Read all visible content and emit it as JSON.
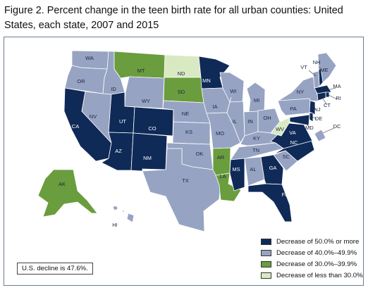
{
  "title": "Figure 2. Percent change in the teen birth rate for all urban counties: United States, each state, 2007 and 2015",
  "colors": {
    "dark_navy": "#0f2a57",
    "slate_blue": "#97a3c2",
    "green": "#6a9d3d",
    "light_green": "#d9e9c2",
    "state_border": "#ffffff",
    "panel_border": "#6d7d92"
  },
  "legend": [
    {
      "label": "Decrease of 50.0% or more",
      "color": "#0f2a57"
    },
    {
      "label": "Decrease of 40.0%–49.9%",
      "color": "#97a3c2"
    },
    {
      "label": "Decrease of 30.0%–39.9%",
      "color": "#6a9d3d"
    },
    {
      "label": "Decrease of less than 30.0%",
      "color": "#d9e9c2"
    }
  ],
  "note": "U.S. decline is 47.6%.",
  "states": [
    {
      "abbr": "WA",
      "category": "40.0–49.9"
    },
    {
      "abbr": "OR",
      "category": "40.0–49.9"
    },
    {
      "abbr": "CA",
      "category": "50.0+"
    },
    {
      "abbr": "NV",
      "category": "40.0–49.9"
    },
    {
      "abbr": "ID",
      "category": "40.0–49.9"
    },
    {
      "abbr": "MT",
      "category": "30.0–39.9"
    },
    {
      "abbr": "WY",
      "category": "40.0–49.9"
    },
    {
      "abbr": "UT",
      "category": "50.0+"
    },
    {
      "abbr": "CO",
      "category": "50.0+"
    },
    {
      "abbr": "AZ",
      "category": "50.0+"
    },
    {
      "abbr": "NM",
      "category": "50.0+"
    },
    {
      "abbr": "ND",
      "category": "<30.0"
    },
    {
      "abbr": "SD",
      "category": "30.0–39.9"
    },
    {
      "abbr": "NE",
      "category": "40.0–49.9"
    },
    {
      "abbr": "KS",
      "category": "40.0–49.9"
    },
    {
      "abbr": "OK",
      "category": "40.0–49.9"
    },
    {
      "abbr": "TX",
      "category": "40.0–49.9"
    },
    {
      "abbr": "MN",
      "category": "50.0+"
    },
    {
      "abbr": "IA",
      "category": "40.0–49.9"
    },
    {
      "abbr": "MO",
      "category": "40.0–49.9"
    },
    {
      "abbr": "AR",
      "category": "30.0–39.9"
    },
    {
      "abbr": "LA",
      "category": "30.0–39.9"
    },
    {
      "abbr": "WI",
      "category": "40.0–49.9"
    },
    {
      "abbr": "IL",
      "category": "40.0–49.9"
    },
    {
      "abbr": "MI",
      "category": "40.0–49.9"
    },
    {
      "abbr": "IN",
      "category": "40.0–49.9"
    },
    {
      "abbr": "OH",
      "category": "40.0–49.9"
    },
    {
      "abbr": "KY",
      "category": "40.0–49.9"
    },
    {
      "abbr": "TN",
      "category": "40.0–49.9"
    },
    {
      "abbr": "MS",
      "category": "50.0+"
    },
    {
      "abbr": "AL",
      "category": "40.0–49.9"
    },
    {
      "abbr": "GA",
      "category": "50.0+"
    },
    {
      "abbr": "FL",
      "category": "50.0+"
    },
    {
      "abbr": "SC",
      "category": "40.0–49.9"
    },
    {
      "abbr": "NC",
      "category": "50.0+"
    },
    {
      "abbr": "VA",
      "category": "50.0+"
    },
    {
      "abbr": "WV",
      "category": "<30.0"
    },
    {
      "abbr": "PA",
      "category": "40.0–49.9"
    },
    {
      "abbr": "NY",
      "category": "40.0–49.9"
    },
    {
      "abbr": "ME",
      "category": "40.0–49.9"
    },
    {
      "abbr": "NH",
      "category": "50.0+"
    },
    {
      "abbr": "VT",
      "category": "40.0–49.9"
    },
    {
      "abbr": "MA",
      "category": "50.0+"
    },
    {
      "abbr": "RI",
      "category": "50.0+"
    },
    {
      "abbr": "CT",
      "category": "50.0+"
    },
    {
      "abbr": "NJ",
      "category": "50.0+"
    },
    {
      "abbr": "DE",
      "category": "50.0+"
    },
    {
      "abbr": "MD",
      "category": "50.0+"
    },
    {
      "abbr": "DC",
      "category": "40.0–49.9"
    },
    {
      "abbr": "AK",
      "category": "30.0–39.9"
    },
    {
      "abbr": "HI",
      "category": "40.0–49.9"
    }
  ]
}
